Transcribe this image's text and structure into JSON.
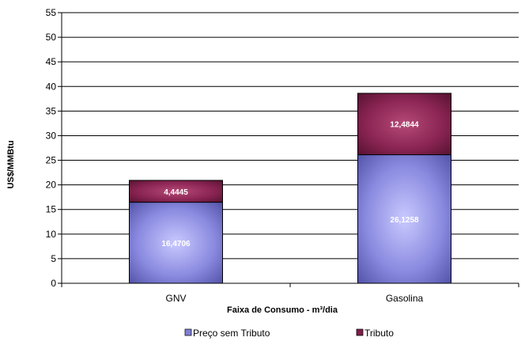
{
  "chart_data": {
    "type": "bar",
    "stacked": true,
    "categories": [
      "GNV",
      "Gasolina"
    ],
    "series": [
      {
        "name": "Preço sem Tributo",
        "values": [
          16.4706,
          26.1258
        ],
        "labels": [
          "16,4706",
          "26,1258"
        ],
        "color": "#7f7fd6"
      },
      {
        "name": "Tributo",
        "values": [
          4.4445,
          12.4844
        ],
        "labels": [
          "4,4445",
          "12,4844"
        ],
        "color": "#7f1f4a"
      }
    ],
    "title": "",
    "xlabel": "Faixa de Consumo - m³/dia",
    "ylabel": "US$/MMBtu",
    "ylim": [
      0,
      55
    ],
    "yticks": [
      0,
      5,
      10,
      15,
      20,
      25,
      30,
      35,
      40,
      45,
      50,
      55
    ],
    "grid": true,
    "legend_position": "bottom"
  }
}
